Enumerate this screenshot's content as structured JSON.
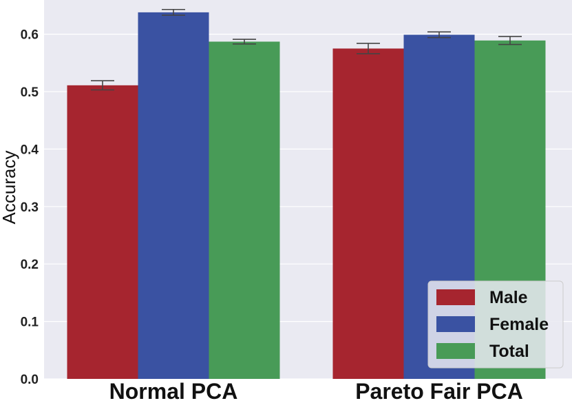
{
  "chart_data": {
    "type": "bar",
    "categories": [
      "Normal PCA",
      "Pareto Fair PCA"
    ],
    "series": [
      {
        "name": "Male",
        "values": [
          0.511,
          0.575
        ],
        "errors": [
          0.008,
          0.009
        ],
        "color": "#a6252f"
      },
      {
        "name": "Female",
        "values": [
          0.638,
          0.599
        ],
        "errors": [
          0.005,
          0.005
        ],
        "color": "#3a52a2"
      },
      {
        "name": "Total",
        "values": [
          0.587,
          0.589
        ],
        "errors": [
          0.004,
          0.007
        ],
        "color": "#489b57"
      }
    ],
    "ylabel": "Accuracy",
    "ylim": [
      0.0,
      0.65
    ],
    "yticks": [
      "0.0",
      "0.1",
      "0.2",
      "0.3",
      "0.4",
      "0.5",
      "0.6"
    ],
    "grid": true,
    "legend": "bottom-right",
    "background": "#eaeaf2"
  }
}
